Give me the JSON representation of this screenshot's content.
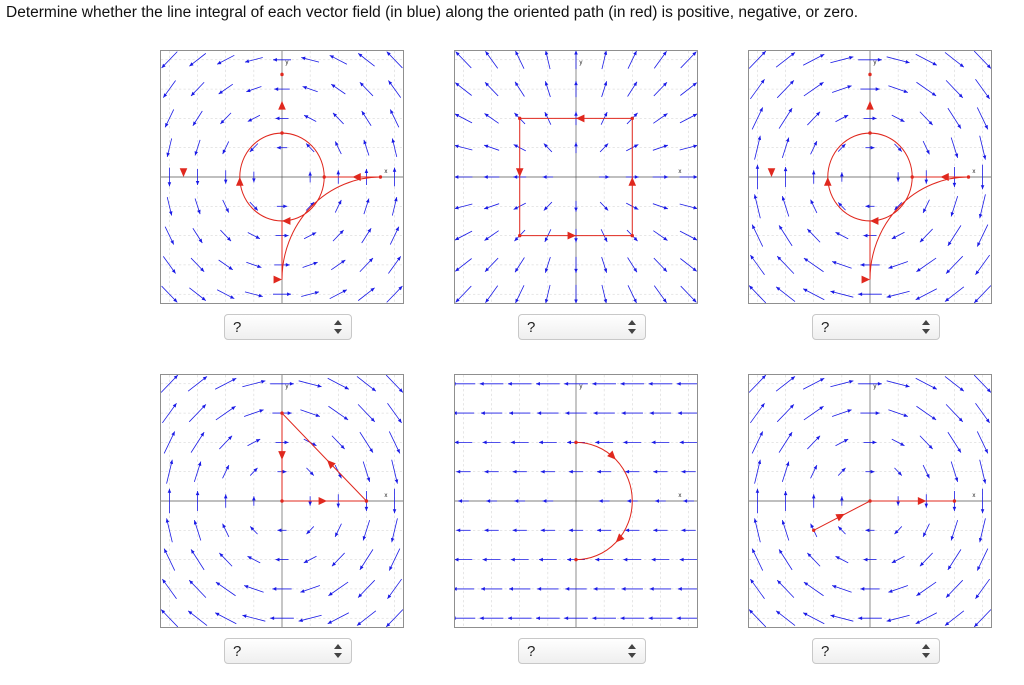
{
  "question": "Determine whether the line integral of each vector field (in blue) along the oriented path (in red) is positive, negative, or zero.",
  "colors": {
    "field": "#1a1ae6",
    "path": "#e0281e",
    "grid": "#c8c8c8",
    "axis": "#555555"
  },
  "axis_labels": {
    "x": "x",
    "y": "y"
  },
  "panels": [
    {
      "id": "p1",
      "select_value": "?"
    },
    {
      "id": "p2",
      "select_value": "?"
    },
    {
      "id": "p3",
      "select_value": "?"
    },
    {
      "id": "p4",
      "select_value": "?"
    },
    {
      "id": "p5",
      "select_value": "?"
    },
    {
      "id": "p6",
      "select_value": "?"
    }
  ]
}
